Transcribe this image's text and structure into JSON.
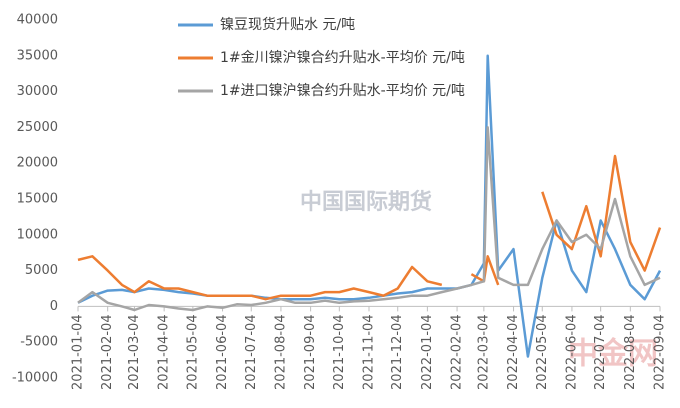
{
  "chart_data": {
    "type": "line",
    "x": [
      "2021-01-04",
      "2021-01-19",
      "2021-02-04",
      "2021-02-19",
      "2021-03-04",
      "2021-03-19",
      "2021-04-04",
      "2021-04-19",
      "2021-05-04",
      "2021-05-19",
      "2021-06-04",
      "2021-06-19",
      "2021-07-04",
      "2021-07-19",
      "2021-08-04",
      "2021-08-19",
      "2021-09-04",
      "2021-09-19",
      "2021-10-04",
      "2021-10-19",
      "2021-11-04",
      "2021-11-19",
      "2021-12-04",
      "2021-12-19",
      "2022-01-04",
      "2022-01-19",
      "2022-02-04",
      "2022-02-19",
      "2022-03-04",
      "2022-03-08",
      "2022-03-19",
      "2022-04-04",
      "2022-04-19",
      "2022-05-04",
      "2022-05-19",
      "2022-06-04",
      "2022-06-19",
      "2022-07-04",
      "2022-07-19",
      "2022-08-04",
      "2022-08-19",
      "2022-09-04"
    ],
    "series": [
      {
        "name": "镍豆现货升贴水 元/吨",
        "color": "#5b9bd5",
        "values": [
          500,
          1500,
          2200,
          2300,
          2000,
          2500,
          2300,
          2000,
          1800,
          1500,
          1500,
          1500,
          1500,
          1200,
          1000,
          1000,
          1000,
          1200,
          1000,
          1000,
          1200,
          1500,
          1800,
          2000,
          2500,
          2500,
          2500,
          3000,
          6000,
          35000,
          5000,
          8000,
          -7000,
          4000,
          12000,
          5000,
          2000,
          12000,
          8000,
          3000,
          1000,
          5000
        ]
      },
      {
        "name": "1#金川镍沪镍合约升贴水-平均价 元/吨",
        "color": "#ed7d31",
        "values": [
          6500,
          7000,
          5000,
          3000,
          2000,
          3500,
          2500,
          2500,
          2000,
          1500,
          1500,
          1500,
          1500,
          1000,
          1500,
          1500,
          1500,
          2000,
          2000,
          2500,
          2000,
          1500,
          2500,
          5500,
          3500,
          3000,
          null,
          4500,
          3500,
          7000,
          3000,
          null,
          null,
          16000,
          10000,
          8000,
          14000,
          7000,
          21000,
          9000,
          5000,
          11000
        ]
      },
      {
        "name": "1#进口镍沪镍合约升贴水-平均价 元/吨",
        "color": "#a5a5a5",
        "values": [
          500,
          2000,
          500,
          0,
          -500,
          200,
          0,
          -300,
          -500,
          0,
          -200,
          300,
          200,
          500,
          1000,
          500,
          500,
          800,
          500,
          700,
          800,
          1000,
          1200,
          1500,
          1500,
          2000,
          2500,
          3000,
          3500,
          25000,
          4000,
          3000,
          3000,
          8000,
          12000,
          9000,
          10000,
          8000,
          15000,
          7000,
          3000,
          4000
        ]
      }
    ],
    "xlim": [
      "2021-01-04",
      "2022-09-04"
    ],
    "xticks": [
      "2021-01-04",
      "2021-02-04",
      "2021-03-04",
      "2021-04-04",
      "2021-05-04",
      "2021-06-04",
      "2021-07-04",
      "2021-08-04",
      "2021-09-04",
      "2021-10-04",
      "2021-11-04",
      "2021-12-04",
      "2022-01-04",
      "2022-02-04",
      "2022-03-04",
      "2022-04-04",
      "2022-05-04",
      "2022-06-04",
      "2022-07-04",
      "2022-08-04",
      "2022-09-04"
    ],
    "ylim": [
      -10000,
      40000
    ],
    "yticks": [
      -10000,
      -5000,
      0,
      5000,
      10000,
      15000,
      20000,
      25000,
      30000,
      35000,
      40000
    ],
    "legend": "top",
    "annotations": [
      "中国国际期货",
      "中金网"
    ]
  }
}
